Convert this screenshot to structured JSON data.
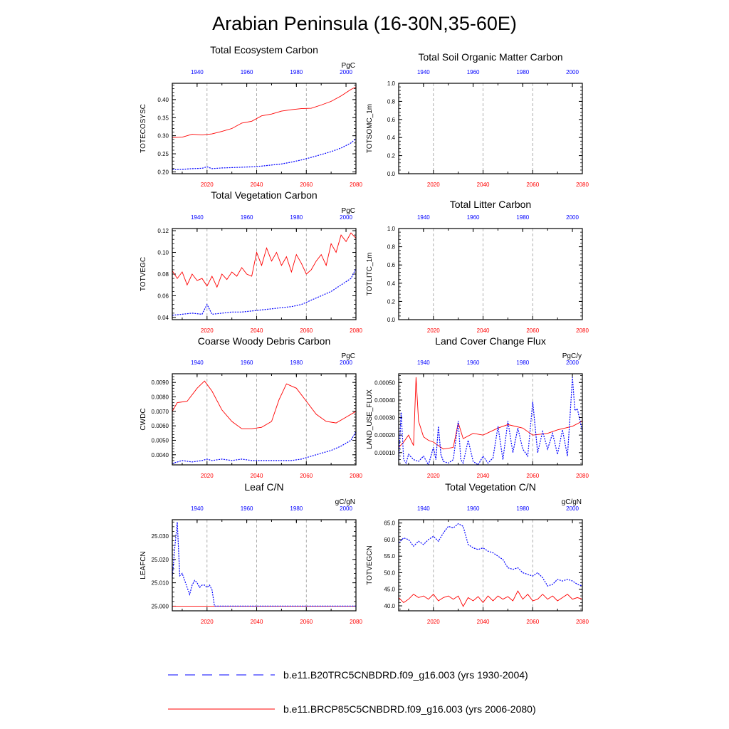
{
  "title": "Arabian Peninsula (16-30N,35-60E)",
  "colors": {
    "historical": "#0000ff",
    "future": "#ff0000",
    "axis": "#000000",
    "grid": "#999999"
  },
  "legend": [
    {
      "label": "b.e11.B20TRC5CNBDRD.f09_g16.003 (yrs 1930-2004)",
      "style": "dashed",
      "color": "#0000ff"
    },
    {
      "label": "b.e11.BRCP85C5CNBDRD.f09_g16.003 (yrs 2006-2080)",
      "style": "solid",
      "color": "#ff0000"
    }
  ],
  "chart_data": [
    {
      "type": "line",
      "title": "Total Ecosystem Carbon",
      "ylabel": "TOTECOSYSC",
      "units": "PgC",
      "bottom_xticks": [
        "2020",
        "2040",
        "2060",
        "2080"
      ],
      "top_xticks": [
        "1940",
        "1960",
        "1980",
        "2000"
      ],
      "yticks": [
        "0.20",
        "0.25",
        "0.30",
        "0.35",
        "0.40"
      ],
      "ylim": [
        0.195,
        0.445
      ],
      "xlim": [
        2006,
        2080
      ],
      "series": [
        {
          "color": "#ff0000",
          "dash": false,
          "x": [
            2006,
            2010,
            2014,
            2018,
            2022,
            2026,
            2030,
            2034,
            2038,
            2042,
            2046,
            2050,
            2054,
            2058,
            2062,
            2066,
            2070,
            2074,
            2078,
            2080
          ],
          "y": [
            0.295,
            0.296,
            0.304,
            0.302,
            0.305,
            0.312,
            0.32,
            0.335,
            0.34,
            0.355,
            0.36,
            0.368,
            0.372,
            0.375,
            0.376,
            0.385,
            0.395,
            0.41,
            0.428,
            0.435
          ]
        },
        {
          "color": "#0000ff",
          "dash": true,
          "x": [
            2006,
            2010,
            2014,
            2018,
            2020,
            2022,
            2026,
            2030,
            2034,
            2038,
            2042,
            2046,
            2050,
            2054,
            2058,
            2062,
            2066,
            2070,
            2074,
            2078,
            2080
          ],
          "y": [
            0.206,
            0.207,
            0.209,
            0.21,
            0.214,
            0.209,
            0.211,
            0.212,
            0.213,
            0.214,
            0.216,
            0.219,
            0.222,
            0.227,
            0.233,
            0.24,
            0.248,
            0.256,
            0.266,
            0.28,
            0.292
          ]
        }
      ]
    },
    {
      "type": "line",
      "title": "Total Soil Organic Matter Carbon",
      "ylabel": "TOTSOMC_1m",
      "units": "",
      "bottom_xticks": [
        "2020",
        "2040",
        "2060",
        "2080"
      ],
      "top_xticks": [
        "1940",
        "1960",
        "1980",
        "2000"
      ],
      "yticks": [
        "0.0",
        "0.2",
        "0.4",
        "0.6",
        "0.8",
        "1.0"
      ],
      "ylim": [
        0,
        1
      ],
      "xlim": [
        2006,
        2080
      ],
      "series": []
    },
    {
      "type": "line",
      "title": "Total Vegetation Carbon",
      "ylabel": "TOTVEGC",
      "units": "PgC",
      "bottom_xticks": [
        "2020",
        "2040",
        "2060",
        "2080"
      ],
      "top_xticks": [
        "1940",
        "1960",
        "1980",
        "2000"
      ],
      "yticks": [
        "0.04",
        "0.06",
        "0.08",
        "0.10",
        "0.12"
      ],
      "ylim": [
        0.038,
        0.122
      ],
      "xlim": [
        2006,
        2080
      ],
      "series": [
        {
          "color": "#ff0000",
          "dash": false,
          "x": [
            2006,
            2008,
            2010,
            2012,
            2014,
            2016,
            2018,
            2020,
            2022,
            2024,
            2026,
            2028,
            2030,
            2032,
            2034,
            2036,
            2038,
            2040,
            2042,
            2044,
            2046,
            2048,
            2050,
            2052,
            2054,
            2056,
            2058,
            2060,
            2062,
            2064,
            2066,
            2068,
            2070,
            2072,
            2074,
            2076,
            2078,
            2080
          ],
          "y": [
            0.083,
            0.076,
            0.082,
            0.07,
            0.08,
            0.074,
            0.076,
            0.069,
            0.078,
            0.068,
            0.08,
            0.075,
            0.082,
            0.078,
            0.086,
            0.08,
            0.078,
            0.1,
            0.088,
            0.104,
            0.092,
            0.1,
            0.088,
            0.096,
            0.082,
            0.098,
            0.09,
            0.08,
            0.084,
            0.092,
            0.098,
            0.088,
            0.108,
            0.1,
            0.116,
            0.11,
            0.118,
            0.113
          ]
        },
        {
          "color": "#0000ff",
          "dash": true,
          "x": [
            2006,
            2010,
            2014,
            2018,
            2020,
            2022,
            2026,
            2030,
            2034,
            2038,
            2042,
            2046,
            2050,
            2054,
            2058,
            2062,
            2066,
            2070,
            2074,
            2078,
            2080
          ],
          "y": [
            0.042,
            0.043,
            0.044,
            0.043,
            0.052,
            0.043,
            0.044,
            0.045,
            0.045,
            0.046,
            0.047,
            0.048,
            0.049,
            0.05,
            0.052,
            0.056,
            0.06,
            0.064,
            0.07,
            0.076,
            0.085
          ]
        }
      ]
    },
    {
      "type": "line",
      "title": "Total Litter Carbon",
      "ylabel": "TOTLITC_1m",
      "units": "",
      "bottom_xticks": [
        "2020",
        "2040",
        "2060",
        "2080"
      ],
      "top_xticks": [
        "1940",
        "1960",
        "1980",
        "2000"
      ],
      "yticks": [
        "0.0",
        "0.2",
        "0.4",
        "0.6",
        "0.8",
        "1.0"
      ],
      "ylim": [
        0,
        1
      ],
      "xlim": [
        2006,
        2080
      ],
      "series": []
    },
    {
      "type": "line",
      "title": "Coarse Woody Debris Carbon",
      "ylabel": "CWDC",
      "units": "PgC",
      "bottom_xticks": [
        "2020",
        "2040",
        "2060",
        "2080"
      ],
      "top_xticks": [
        "1940",
        "1960",
        "1980",
        "2000"
      ],
      "yticks": [
        "0.0040",
        "0.0050",
        "0.0060",
        "0.0070",
        "0.0080",
        "0.0090"
      ],
      "ylim": [
        0.0033,
        0.0096
      ],
      "xlim": [
        2006,
        2080
      ],
      "series": [
        {
          "color": "#ff0000",
          "dash": false,
          "x": [
            2006,
            2008,
            2012,
            2016,
            2019,
            2022,
            2026,
            2030,
            2034,
            2038,
            2042,
            2046,
            2049,
            2052,
            2056,
            2060,
            2064,
            2068,
            2072,
            2076,
            2080
          ],
          "y": [
            0.007,
            0.0076,
            0.0077,
            0.0086,
            0.0091,
            0.0084,
            0.0071,
            0.0063,
            0.0058,
            0.0058,
            0.0059,
            0.0063,
            0.0078,
            0.0089,
            0.0086,
            0.0077,
            0.0068,
            0.0063,
            0.0062,
            0.0066,
            0.007
          ]
        },
        {
          "color": "#0000ff",
          "dash": true,
          "x": [
            2006,
            2010,
            2014,
            2018,
            2020,
            2022,
            2026,
            2030,
            2034,
            2038,
            2042,
            2046,
            2050,
            2054,
            2058,
            2062,
            2066,
            2070,
            2074,
            2078,
            2080
          ],
          "y": [
            0.0034,
            0.0036,
            0.0035,
            0.0036,
            0.0037,
            0.0036,
            0.0037,
            0.0036,
            0.0037,
            0.0036,
            0.0036,
            0.0036,
            0.0036,
            0.0036,
            0.0037,
            0.0039,
            0.0041,
            0.0043,
            0.0046,
            0.005,
            0.0056
          ]
        }
      ]
    },
    {
      "type": "line",
      "title": "Land Cover Change Flux",
      "ylabel": "LAND_USE_FLUX",
      "units": "PgC/y",
      "bottom_xticks": [
        "2020",
        "2040",
        "2060",
        "2080"
      ],
      "top_xticks": [
        "1940",
        "1960",
        "1980",
        "2000"
      ],
      "yticks": [
        "0.00010",
        "0.00020",
        "0.00030",
        "0.00040",
        "0.00050"
      ],
      "ylim": [
        3e-05,
        0.00055
      ],
      "xlim": [
        2006,
        2080
      ],
      "series": [
        {
          "color": "#ff0000",
          "dash": false,
          "x": [
            2006,
            2008,
            2010,
            2012,
            2013,
            2014,
            2016,
            2018,
            2020,
            2024,
            2028,
            2030,
            2032,
            2036,
            2040,
            2046,
            2050,
            2056,
            2060,
            2066,
            2070,
            2076,
            2080
          ],
          "y": [
            0.00013,
            0.00016,
            0.0002,
            0.00014,
            0.00053,
            0.00028,
            0.00019,
            0.00017,
            0.00016,
            0.00012,
            0.00013,
            0.00027,
            0.00018,
            0.00021,
            0.0002,
            0.00024,
            0.00026,
            0.00024,
            0.0002,
            0.00021,
            0.00023,
            0.00025,
            0.00028
          ]
        },
        {
          "color": "#0000ff",
          "dash": true,
          "x": [
            2006,
            2007,
            2008,
            2009,
            2010,
            2012,
            2014,
            2016,
            2018,
            2020,
            2021,
            2022,
            2023,
            2024,
            2026,
            2028,
            2030,
            2031,
            2032,
            2034,
            2036,
            2038,
            2040,
            2042,
            2044,
            2046,
            2048,
            2050,
            2052,
            2054,
            2056,
            2058,
            2060,
            2062,
            2064,
            2066,
            2068,
            2070,
            2072,
            2074,
            2075,
            2076,
            2077,
            2078,
            2080
          ],
          "y": [
            5e-05,
            0.00033,
            6e-05,
            4e-05,
            9e-05,
            6e-05,
            5e-05,
            8e-05,
            3e-05,
            0.00013,
            6e-05,
            0.00025,
            9e-05,
            5e-05,
            4e-05,
            6e-05,
            0.00028,
            6e-05,
            4e-05,
            0.00017,
            5e-05,
            3e-05,
            8e-05,
            4e-05,
            7e-05,
            0.00025,
            6e-05,
            0.00028,
            0.0001,
            0.00024,
            0.00012,
            8e-05,
            0.00039,
            0.0001,
            0.00022,
            0.00012,
            0.00021,
            9e-05,
            0.00023,
            8e-05,
            0.0003,
            0.00053,
            0.00034,
            0.00035,
            0.00022
          ]
        }
      ]
    },
    {
      "type": "line",
      "title": "Leaf C/N",
      "ylabel": "LEAFCN",
      "units": "gC/gN",
      "bottom_xticks": [
        "2020",
        "2040",
        "2060",
        "2080"
      ],
      "top_xticks": [
        "1940",
        "1960",
        "1980",
        "2000"
      ],
      "yticks": [
        "25.000",
        "25.010",
        "25.020",
        "25.030"
      ],
      "ylim": [
        24.998,
        25.037
      ],
      "xlim": [
        2006,
        2080
      ],
      "series": [
        {
          "color": "#ff0000",
          "dash": false,
          "x": [
            2006,
            2080
          ],
          "y": [
            25.0,
            25.0
          ]
        },
        {
          "color": "#0000ff",
          "dash": true,
          "x": [
            2006,
            2007,
            2008,
            2009,
            2010,
            2011,
            2012,
            2013,
            2014,
            2015,
            2016,
            2017,
            2018,
            2019,
            2020,
            2021,
            2022,
            2023,
            2024,
            2080
          ],
          "y": [
            25.012,
            25.025,
            25.036,
            25.013,
            25.014,
            25.011,
            25.008,
            25.005,
            25.009,
            25.011,
            25.01,
            25.008,
            25.009,
            25.009,
            25.008,
            25.009,
            25.007,
            25.0,
            25.0,
            25.0
          ]
        }
      ]
    },
    {
      "type": "line",
      "title": "Total Vegetation C/N",
      "ylabel": "TOTVEGCN",
      "units": "gC/gN",
      "bottom_xticks": [
        "2020",
        "2040",
        "2060",
        "2080"
      ],
      "top_xticks": [
        "1940",
        "1960",
        "1980",
        "2000"
      ],
      "yticks": [
        "40.0",
        "45.0",
        "50.0",
        "55.0",
        "60.0",
        "65.0"
      ],
      "ylim": [
        38.5,
        66.0
      ],
      "xlim": [
        2006,
        2080
      ],
      "series": [
        {
          "color": "#0000ff",
          "dash": true,
          "x": [
            2006,
            2008,
            2010,
            2012,
            2014,
            2016,
            2018,
            2020,
            2022,
            2024,
            2026,
            2028,
            2030,
            2032,
            2034,
            2036,
            2038,
            2040,
            2042,
            2044,
            2046,
            2048,
            2050,
            2052,
            2054,
            2056,
            2058,
            2060,
            2062,
            2064,
            2066,
            2068,
            2070,
            2072,
            2074,
            2076,
            2078,
            2080
          ],
          "y": [
            59.0,
            60.5,
            60.0,
            58.0,
            59.5,
            58.5,
            60.0,
            61.0,
            59.5,
            62.0,
            64.0,
            63.5,
            64.8,
            64.0,
            58.5,
            57.5,
            57.0,
            57.5,
            56.5,
            56.0,
            55.0,
            54.0,
            51.5,
            51.0,
            51.5,
            50.0,
            49.5,
            49.0,
            50.0,
            48.5,
            46.0,
            46.5,
            48.0,
            47.5,
            48.0,
            47.5,
            46.5,
            46.0
          ]
        },
        {
          "color": "#ff0000",
          "dash": false,
          "x": [
            2006,
            2008,
            2010,
            2012,
            2014,
            2016,
            2018,
            2020,
            2022,
            2024,
            2026,
            2028,
            2030,
            2032,
            2034,
            2036,
            2038,
            2040,
            2042,
            2044,
            2046,
            2048,
            2050,
            2052,
            2054,
            2056,
            2058,
            2060,
            2062,
            2064,
            2066,
            2068,
            2070,
            2072,
            2074,
            2076,
            2078,
            2080
          ],
          "y": [
            42.5,
            41.0,
            42.0,
            43.5,
            42.5,
            43.0,
            42.0,
            43.5,
            41.5,
            42.5,
            43.0,
            42.0,
            43.0,
            39.8,
            42.5,
            41.5,
            42.8,
            41.0,
            43.0,
            41.5,
            43.0,
            42.0,
            42.8,
            41.5,
            44.5,
            42.0,
            43.5,
            41.5,
            42.0,
            43.5,
            42.0,
            43.0,
            41.5,
            42.5,
            43.5,
            42.0,
            42.5,
            42.0
          ]
        }
      ]
    }
  ]
}
